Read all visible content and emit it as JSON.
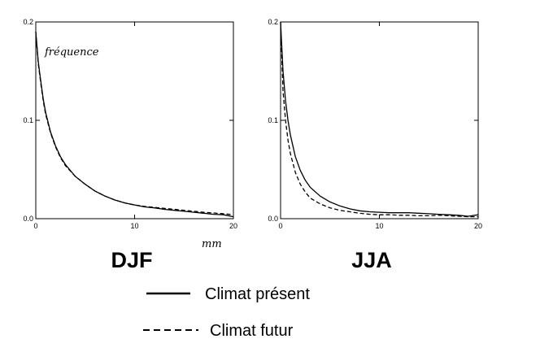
{
  "annotation_y": "fréquence",
  "annotation_x": "mm",
  "legend": {
    "present": "Climat présent",
    "future": "Climat futur"
  },
  "chart_data": [
    {
      "type": "line",
      "title": "DJF",
      "xlim": [
        0,
        20
      ],
      "ylim": [
        0,
        0.2
      ],
      "xticks": [
        "0",
        "10",
        "20"
      ],
      "yticks": [
        "0.0",
        "0.1",
        "0.2"
      ],
      "series": [
        {
          "name": "Climat présent",
          "style": "solid",
          "x": [
            0,
            0.25,
            0.5,
            0.75,
            1,
            1.5,
            2,
            2.5,
            3,
            4,
            5,
            6,
            7,
            8,
            9,
            10,
            11,
            12,
            13,
            14,
            15,
            16,
            17,
            18,
            19,
            20
          ],
          "y": [
            0.19,
            0.16,
            0.14,
            0.122,
            0.108,
            0.088,
            0.074,
            0.063,
            0.055,
            0.043,
            0.035,
            0.028,
            0.023,
            0.019,
            0.016,
            0.014,
            0.012,
            0.011,
            0.0095,
            0.0085,
            0.0075,
            0.0065,
            0.0055,
            0.0045,
            0.004,
            0.002
          ]
        },
        {
          "name": "Climat futur",
          "style": "dashed",
          "x": [
            0,
            0.25,
            0.5,
            0.75,
            1,
            1.5,
            2,
            2.5,
            3,
            4,
            5,
            6,
            7,
            8,
            9,
            10,
            11,
            12,
            13,
            14,
            15,
            16,
            17,
            18,
            19,
            20
          ],
          "y": [
            0.19,
            0.158,
            0.138,
            0.12,
            0.106,
            0.087,
            0.073,
            0.062,
            0.054,
            0.043,
            0.035,
            0.028,
            0.023,
            0.019,
            0.016,
            0.014,
            0.0125,
            0.0115,
            0.0105,
            0.0095,
            0.0085,
            0.0075,
            0.0065,
            0.0058,
            0.005,
            0.004
          ]
        }
      ]
    },
    {
      "type": "line",
      "title": "JJA",
      "xlim": [
        0,
        20
      ],
      "ylim": [
        0,
        0.2
      ],
      "xticks": [
        "0",
        "10",
        "20"
      ],
      "yticks": [
        "0.0",
        "0.1",
        "0.2"
      ],
      "series": [
        {
          "name": "Climat présent",
          "style": "solid",
          "x": [
            0,
            0.25,
            0.5,
            0.75,
            1,
            1.5,
            2,
            2.5,
            3,
            4,
            5,
            6,
            7,
            8,
            9,
            10,
            11,
            12,
            13,
            14,
            15,
            16,
            17,
            18,
            19,
            20
          ],
          "y": [
            0.2,
            0.15,
            0.12,
            0.1,
            0.085,
            0.063,
            0.049,
            0.039,
            0.032,
            0.023,
            0.017,
            0.013,
            0.01,
            0.008,
            0.007,
            0.0065,
            0.006,
            0.006,
            0.006,
            0.0055,
            0.005,
            0.0045,
            0.004,
            0.0035,
            0.0025,
            0.004
          ]
        },
        {
          "name": "Climat futur",
          "style": "dashed",
          "x": [
            0,
            0.25,
            0.5,
            0.75,
            1,
            1.5,
            2,
            2.5,
            3,
            4,
            5,
            6,
            7,
            8,
            9,
            10,
            11,
            12,
            13,
            14,
            15,
            16,
            17,
            18,
            19,
            20
          ],
          "y": [
            0.2,
            0.13,
            0.1,
            0.08,
            0.066,
            0.047,
            0.035,
            0.027,
            0.021,
            0.015,
            0.011,
            0.0085,
            0.007,
            0.0055,
            0.0045,
            0.004,
            0.004,
            0.0035,
            0.0035,
            0.003,
            0.003,
            0.0035,
            0.003,
            0.0025,
            0.002,
            0.002
          ]
        }
      ]
    }
  ]
}
